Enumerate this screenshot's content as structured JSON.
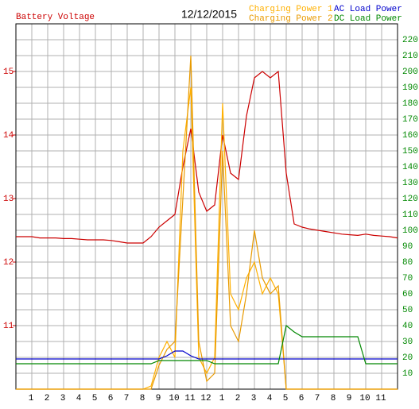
{
  "chart_data": {
    "type": "line",
    "date": "12/12/2015",
    "x": [
      0,
      0.5,
      1,
      1.5,
      2,
      2.5,
      3,
      3.5,
      4,
      4.5,
      5,
      5.5,
      6,
      6.5,
      7,
      7.5,
      8,
      8.5,
      9,
      9.5,
      10,
      10.5,
      11,
      11.5,
      12,
      12.5,
      13,
      13.5,
      14,
      14.5,
      15,
      15.5,
      16,
      16.5,
      17,
      17.5,
      18,
      18.5,
      19,
      19.5,
      20,
      20.5,
      21,
      21.5,
      22,
      22.5,
      23,
      23.5,
      24
    ],
    "xlim": [
      0,
      24
    ],
    "xticks": [
      1,
      2,
      3,
      4,
      5,
      6,
      7,
      8,
      9,
      10,
      11,
      12,
      {
        "value": 13,
        "label": "1"
      },
      {
        "value": 14,
        "label": "2"
      },
      {
        "value": 15,
        "label": "3"
      },
      {
        "value": 16,
        "label": "4"
      },
      {
        "value": 17,
        "label": "5"
      },
      {
        "value": 18,
        "label": "6"
      },
      {
        "value": 19,
        "label": "7"
      },
      {
        "value": 20,
        "label": "8"
      },
      {
        "value": 21,
        "label": "9"
      },
      {
        "value": 22,
        "label": "10"
      },
      {
        "value": 23,
        "label": "11"
      }
    ],
    "ylim": [
      10,
      15.75
    ],
    "yticks": [
      11,
      12,
      13,
      14,
      15
    ],
    "y2lim": [
      0,
      230
    ],
    "y2ticks": [
      10,
      20,
      30,
      40,
      50,
      60,
      70,
      80,
      90,
      100,
      110,
      120,
      130,
      140,
      150,
      160,
      170,
      180,
      190,
      200,
      210,
      220
    ],
    "grid": true,
    "series": [
      {
        "name": "Battery Voltage",
        "color": "#cc0000",
        "values": [
          12.4,
          12.4,
          12.4,
          12.38,
          12.38,
          12.38,
          12.37,
          12.37,
          12.36,
          12.35,
          12.35,
          12.35,
          12.34,
          12.32,
          12.3,
          12.3,
          12.3,
          12.4,
          12.55,
          12.65,
          12.75,
          13.5,
          14.1,
          13.1,
          12.8,
          12.9,
          14.0,
          13.4,
          13.3,
          14.3,
          14.9,
          15.0,
          14.9,
          15.0,
          13.4,
          12.6,
          12.55,
          12.52,
          12.5,
          12.48,
          12.46,
          12.44,
          12.43,
          12.42,
          12.44,
          12.42,
          12.41,
          12.4,
          12.38
        ]
      },
      {
        "name": "Charging Power 1",
        "color": "#ffb000",
        "axis": "y2",
        "values": [
          0,
          0,
          0,
          0,
          0,
          0,
          0,
          0,
          0,
          0,
          0,
          0,
          0,
          0,
          0,
          0,
          0,
          2,
          20,
          30,
          20,
          150,
          190,
          20,
          10,
          20,
          180,
          60,
          50,
          70,
          80,
          60,
          70,
          60,
          0,
          0,
          0,
          0,
          0,
          0,
          0,
          0,
          0,
          0,
          0,
          0,
          0,
          0,
          0
        ]
      },
      {
        "name": "Charging Power 2",
        "color": "#e89a00",
        "axis": "y2",
        "values": [
          0,
          0,
          0,
          0,
          0,
          0,
          0,
          0,
          0,
          0,
          0,
          0,
          0,
          0,
          0,
          0,
          0,
          0,
          15,
          25,
          30,
          120,
          210,
          30,
          5,
          10,
          150,
          40,
          30,
          60,
          100,
          70,
          60,
          65,
          0,
          0,
          0,
          0,
          0,
          0,
          0,
          0,
          0,
          0,
          0,
          0,
          0,
          0,
          0
        ]
      },
      {
        "name": "AC Load Power",
        "color": "#0000cc",
        "axis": "y2",
        "values": [
          19,
          19,
          19,
          19,
          19,
          19,
          19,
          19,
          19,
          19,
          19,
          19,
          19,
          19,
          19,
          19,
          19,
          19,
          19,
          21,
          24,
          24,
          21,
          19,
          19,
          19,
          19,
          19,
          19,
          19,
          19,
          19,
          19,
          19,
          19,
          19,
          19,
          19,
          19,
          19,
          19,
          19,
          19,
          19,
          19,
          19,
          19,
          19,
          19
        ]
      },
      {
        "name": "DC Load Power",
        "color": "#008800",
        "axis": "y2",
        "values": [
          16,
          16,
          16,
          16,
          16,
          16,
          16,
          16,
          16,
          16,
          16,
          16,
          16,
          16,
          16,
          16,
          16,
          16,
          18,
          18,
          18,
          18,
          18,
          18,
          18,
          16,
          16,
          16,
          16,
          16,
          16,
          16,
          16,
          16,
          40,
          36,
          33,
          33,
          33,
          33,
          33,
          33,
          33,
          33,
          16,
          16,
          16,
          16,
          16
        ]
      }
    ]
  }
}
